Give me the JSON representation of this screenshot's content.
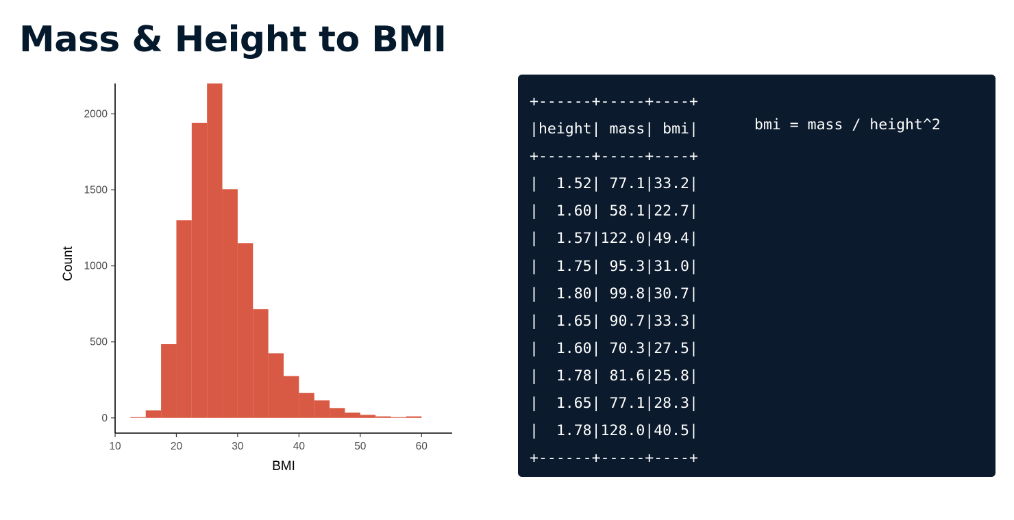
{
  "page_title": "Mass & Height to BMI",
  "chart_data": {
    "type": "bar",
    "subtype": "histogram",
    "title": "",
    "xlabel": "BMI",
    "ylabel": "Count",
    "bin_width": 2.5,
    "bin_left_edges": [
      12.5,
      15,
      17.5,
      20,
      22.5,
      25,
      27.5,
      30,
      32.5,
      35,
      37.5,
      40,
      42.5,
      45,
      47.5,
      50,
      52.5,
      55,
      57.5
    ],
    "values": [
      5,
      50,
      485,
      1300,
      1940,
      2200,
      1505,
      1150,
      715,
      425,
      275,
      165,
      115,
      65,
      35,
      20,
      10,
      5,
      10
    ],
    "xlim": [
      10,
      65
    ],
    "ylim": [
      -100,
      2200
    ],
    "x_ticks": [
      10,
      20,
      30,
      40,
      50,
      60
    ],
    "y_ticks": [
      0,
      500,
      1000,
      1500,
      2000
    ],
    "bar_color": "#d95a44",
    "grid": false,
    "legend": "none"
  },
  "console": {
    "table_lines": [
      "+------+-----+----+",
      "|height| mass| bmi|",
      "+------+-----+----+",
      "|  1.52| 77.1|33.2|",
      "|  1.60| 58.1|22.7|",
      "|  1.57|122.0|49.4|",
      "|  1.75| 95.3|31.0|",
      "|  1.80| 99.8|30.7|",
      "|  1.65| 90.7|33.3|",
      "|  1.60| 70.3|27.5|",
      "|  1.78| 81.6|25.8|",
      "|  1.65| 77.1|28.3|",
      "|  1.78|128.0|40.5|",
      "+------+-----+----+"
    ],
    "formula": "bmi = mass / height^2"
  },
  "colors": {
    "title_text": "#05192d",
    "console_bg": "#0b1a2c",
    "console_text": "#ffffff"
  }
}
